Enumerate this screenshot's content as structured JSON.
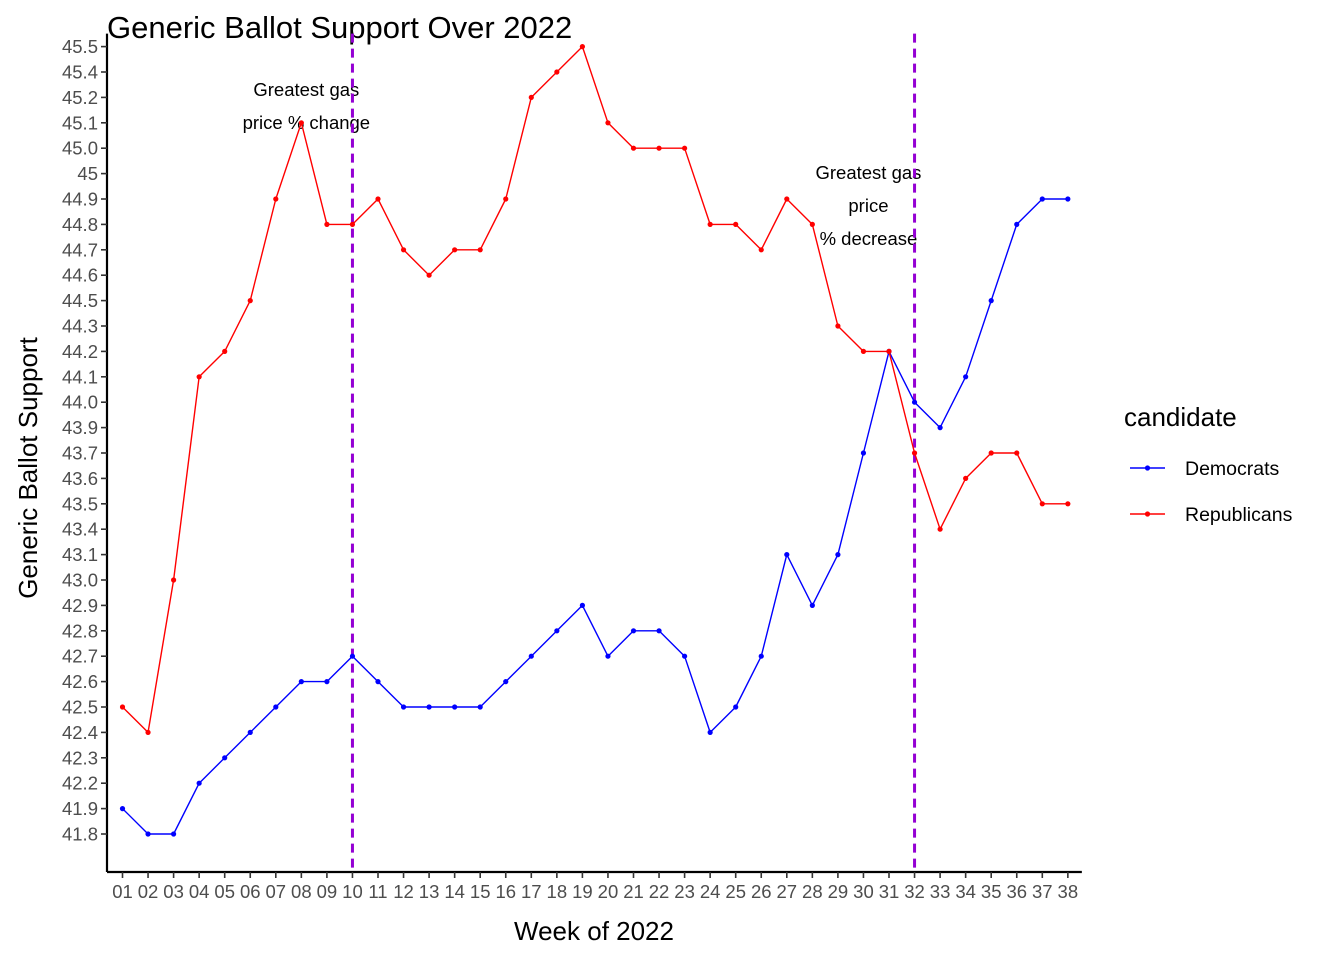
{
  "chart_data": {
    "type": "line",
    "title": "Generic Ballot Support Over 2022",
    "xlabel": "Week of 2022",
    "ylabel": "Generic Ballot Support",
    "categories": [
      "01",
      "02",
      "03",
      "04",
      "05",
      "06",
      "07",
      "08",
      "09",
      "10",
      "11",
      "12",
      "13",
      "14",
      "15",
      "16",
      "17",
      "18",
      "19",
      "20",
      "21",
      "22",
      "23",
      "24",
      "25",
      "26",
      "27",
      "28",
      "29",
      "30",
      "31",
      "32",
      "33",
      "34",
      "35",
      "36",
      "37",
      "38"
    ],
    "y_tick_labels": [
      "41.8",
      "41.9",
      "42.2",
      "42.3",
      "42.4",
      "42.5",
      "42.6",
      "42.7",
      "42.8",
      "42.9",
      "43.0",
      "43.1",
      "43.4",
      "43.5",
      "43.6",
      "43.7",
      "43.9",
      "44.0",
      "44.1",
      "44.2",
      "44.3",
      "44.5",
      "44.6",
      "44.7",
      "44.8",
      "44.9",
      "45",
      "45.0",
      "45.1",
      "45.2",
      "45.4",
      "45.5"
    ],
    "y_axis_note": "discrete axis: each tick label is one evenly spaced level",
    "series": [
      {
        "name": "Democrats",
        "color": "#0000ff",
        "values": [
          "41.9",
          "41.8",
          "41.8",
          "42.2",
          "42.3",
          "42.4",
          "42.5",
          "42.6",
          "42.6",
          "42.7",
          "42.6",
          "42.5",
          "42.5",
          "42.5",
          "42.5",
          "42.6",
          "42.7",
          "42.8",
          "42.9",
          "42.7",
          "42.8",
          "42.8",
          "42.7",
          "42.4",
          "42.5",
          "42.7",
          "43.1",
          "42.9",
          "43.1",
          "43.7",
          "44.2",
          "44.0",
          "43.9",
          "44.1",
          "44.5",
          "44.8",
          "44.9",
          "44.9"
        ]
      },
      {
        "name": "Republicans",
        "color": "#ff0000",
        "values": [
          "42.5",
          "42.4",
          "43.0",
          "44.1",
          "44.2",
          "44.5",
          "44.9",
          "45.1",
          "44.8",
          "44.8",
          "44.9",
          "44.7",
          "44.6",
          "44.7",
          "44.7",
          "44.9",
          "45.2",
          "45.4",
          "45.5",
          "45.1",
          "45.0",
          "45.0",
          "45.0",
          "44.8",
          "44.8",
          "44.7",
          "44.9",
          "44.8",
          "44.3",
          "44.2",
          "44.2",
          "43.7",
          "43.4",
          "43.6",
          "43.7",
          "43.7",
          "43.5",
          "43.5"
        ]
      }
    ],
    "vlines": [
      {
        "at": "10",
        "color": "#9400d3",
        "style": "dashed"
      },
      {
        "at": "32",
        "color": "#9400d3",
        "style": "dashed"
      }
    ],
    "annotations": [
      {
        "at": "08",
        "lines": [
          "Greatest gas",
          "price % change"
        ]
      },
      {
        "at": "30",
        "lines": [
          "Greatest gas",
          "price",
          "% decrease"
        ]
      }
    ],
    "legend": {
      "title": "candidate",
      "position": "right"
    },
    "grid": false
  }
}
